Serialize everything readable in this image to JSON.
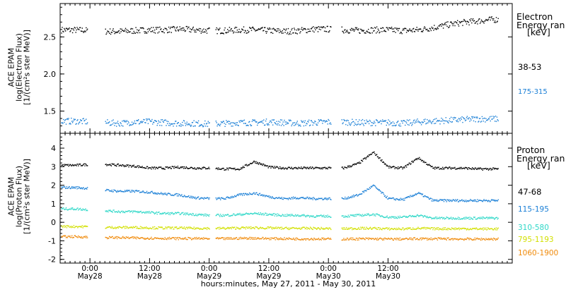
{
  "chart_data": [
    {
      "type": "scatter",
      "panel": "electron",
      "ylabel_lines": [
        "ACE EPAM",
        "log(Electron Flux)",
        "[1/(cm²s ster MeV)]"
      ],
      "ylim": [
        1.2,
        2.95
      ],
      "yticks": [
        1.5,
        2.0,
        2.5
      ],
      "ytick_labels": [
        "1.5",
        "2.0",
        "2.5"
      ],
      "legend_title_lines": [
        "Electron",
        "Energy ran",
        "[keV]"
      ],
      "series": [
        {
          "name": "38-53",
          "color": "#000000",
          "x": [
            0,
            3,
            6,
            9,
            12,
            15,
            18,
            21,
            24,
            27,
            30,
            33,
            36,
            39,
            42,
            45,
            48,
            51,
            54,
            57,
            60,
            63,
            66,
            69,
            72,
            75,
            78,
            81,
            84,
            87
          ],
          "y": [
            2.6,
            2.6,
            2.59,
            2.58,
            2.58,
            2.59,
            2.6,
            2.6,
            2.61,
            2.6,
            2.59,
            2.59,
            2.6,
            2.6,
            2.59,
            2.58,
            2.59,
            2.61,
            2.61,
            2.6,
            2.59,
            2.6,
            2.6,
            2.59,
            2.6,
            2.63,
            2.67,
            2.7,
            2.72,
            2.74
          ]
        },
        {
          "name": "175-315",
          "color": "#1a7fd6",
          "x": [
            0,
            3,
            6,
            9,
            12,
            15,
            18,
            21,
            24,
            27,
            30,
            33,
            36,
            39,
            42,
            45,
            48,
            51,
            54,
            57,
            60,
            63,
            66,
            69,
            72,
            75,
            78,
            81,
            84,
            87
          ],
          "y": [
            1.37,
            1.37,
            1.36,
            1.35,
            1.34,
            1.36,
            1.36,
            1.35,
            1.34,
            1.34,
            1.33,
            1.34,
            1.35,
            1.35,
            1.36,
            1.35,
            1.34,
            1.35,
            1.36,
            1.36,
            1.35,
            1.35,
            1.35,
            1.34,
            1.36,
            1.37,
            1.38,
            1.39,
            1.4,
            1.4
          ]
        }
      ]
    },
    {
      "type": "scatter",
      "panel": "proton",
      "ylabel_lines": [
        "ACE EPAM",
        "log(Proton Flux)",
        "[1/(cm²s ster MeV)]"
      ],
      "ylim": [
        -2.2,
        4.8
      ],
      "yticks": [
        -2,
        -1,
        0,
        1,
        2,
        3,
        4
      ],
      "ytick_labels": [
        "-2",
        "-1",
        "0",
        "1",
        "2",
        "3",
        "4"
      ],
      "legend_title_lines": [
        "Proton",
        "Energy ran",
        "[keV]"
      ],
      "series": [
        {
          "name": "47-68",
          "color": "#000000",
          "x": [
            0,
            3,
            6,
            9,
            12,
            15,
            18,
            21,
            24,
            27,
            30,
            33,
            36,
            39,
            42,
            45,
            48,
            51,
            54,
            57,
            60,
            63,
            66,
            69,
            72,
            75,
            78,
            81,
            84,
            87
          ],
          "y": [
            3.1,
            3.1,
            3.15,
            3.15,
            3.1,
            3.05,
            2.95,
            2.95,
            3.0,
            2.95,
            2.95,
            2.9,
            2.9,
            3.3,
            3.0,
            2.95,
            2.95,
            2.95,
            2.95,
            2.95,
            3.2,
            3.8,
            3.0,
            2.95,
            3.5,
            2.95,
            2.95,
            2.95,
            2.9,
            2.9
          ]
        },
        {
          "name": "115-195",
          "color": "#1a7fd6",
          "x": [
            0,
            3,
            6,
            9,
            12,
            15,
            18,
            21,
            24,
            27,
            30,
            33,
            36,
            39,
            42,
            45,
            48,
            51,
            54,
            57,
            60,
            63,
            66,
            69,
            72,
            75,
            78,
            81,
            84,
            87
          ],
          "y": [
            1.9,
            1.9,
            1.85,
            1.75,
            1.7,
            1.7,
            1.65,
            1.55,
            1.5,
            1.35,
            1.3,
            1.3,
            1.5,
            1.6,
            1.4,
            1.3,
            1.35,
            1.3,
            1.3,
            1.3,
            1.5,
            2.0,
            1.3,
            1.25,
            1.6,
            1.2,
            1.2,
            1.2,
            1.2,
            1.2
          ]
        },
        {
          "name": "310-580",
          "color": "#2fd8c8",
          "x": [
            0,
            3,
            6,
            9,
            12,
            15,
            18,
            21,
            24,
            27,
            30,
            33,
            36,
            39,
            42,
            45,
            48,
            51,
            54,
            57,
            60,
            63,
            66,
            69,
            72,
            75,
            78,
            81,
            84,
            87
          ],
          "y": [
            0.75,
            0.75,
            0.7,
            0.65,
            0.6,
            0.6,
            0.55,
            0.5,
            0.5,
            0.45,
            0.4,
            0.4,
            0.45,
            0.5,
            0.45,
            0.4,
            0.4,
            0.35,
            0.35,
            0.35,
            0.4,
            0.45,
            0.3,
            0.3,
            0.4,
            0.25,
            0.25,
            0.25,
            0.25,
            0.25
          ]
        },
        {
          "name": "795-1193",
          "color": "#d2e000",
          "x": [
            0,
            3,
            6,
            9,
            12,
            15,
            18,
            21,
            24,
            27,
            30,
            33,
            36,
            39,
            42,
            45,
            48,
            51,
            54,
            57,
            60,
            63,
            66,
            69,
            72,
            75,
            78,
            81,
            84,
            87
          ],
          "y": [
            -0.2,
            -0.2,
            -0.22,
            -0.25,
            -0.25,
            -0.25,
            -0.27,
            -0.28,
            -0.28,
            -0.3,
            -0.3,
            -0.3,
            -0.28,
            -0.27,
            -0.28,
            -0.3,
            -0.3,
            -0.3,
            -0.32,
            -0.32,
            -0.3,
            -0.3,
            -0.33,
            -0.33,
            -0.3,
            -0.32,
            -0.32,
            -0.32,
            -0.33,
            -0.33
          ]
        },
        {
          "name": "1060-1900",
          "color": "#f08a0a",
          "x": [
            0,
            3,
            6,
            9,
            12,
            15,
            18,
            21,
            24,
            27,
            30,
            33,
            36,
            39,
            42,
            45,
            48,
            51,
            54,
            57,
            60,
            63,
            66,
            69,
            72,
            75,
            78,
            81,
            84,
            87
          ],
          "y": [
            -0.75,
            -0.75,
            -0.78,
            -0.8,
            -0.8,
            -0.82,
            -0.83,
            -0.84,
            -0.85,
            -0.85,
            -0.86,
            -0.86,
            -0.84,
            -0.83,
            -0.85,
            -0.86,
            -0.87,
            -0.87,
            -0.88,
            -0.88,
            -0.87,
            -0.87,
            -0.88,
            -0.88,
            -0.86,
            -0.87,
            -0.87,
            -0.88,
            -0.88,
            -0.88
          ]
        }
      ]
    }
  ],
  "time_axis": {
    "unit": "hours since May 27, 2011 18:00",
    "xlim": [
      0,
      91
    ],
    "data_gaps": [
      [
        5.5,
        9.0
      ],
      [
        30.0,
        31.2
      ],
      [
        54.5,
        56.5
      ]
    ],
    "major_ticks": [
      {
        "x": 6,
        "time": "0:00",
        "date": "May28"
      },
      {
        "x": 18,
        "time": "12:00",
        "date": "May28"
      },
      {
        "x": 30,
        "time": "0:00",
        "date": "May29"
      },
      {
        "x": 42,
        "time": "12:00",
        "date": "May29"
      },
      {
        "x": 54,
        "time": "0:00",
        "date": "May30"
      },
      {
        "x": 66,
        "time": "12:00",
        "date": "May30"
      }
    ],
    "minor_tick_step": 1,
    "xlabel": "hours:minutes, May 27, 2011 - May 30, 2011"
  },
  "labels": {
    "electron_title_1": "Electron",
    "electron_title_2": "Energy ran",
    "electron_unit": "[keV]",
    "proton_title_1": "Proton",
    "proton_title_2": "Energy ran",
    "proton_unit": "[keV]",
    "e_ch1": "38-53",
    "e_ch2": "175-315",
    "p_ch1": "47-68",
    "p_ch2": "115-195",
    "p_ch3": "310-580",
    "p_ch4": "795-1193",
    "p_ch5": "1060-1900",
    "e_ylab_1": "ACE EPAM",
    "e_ylab_2": "log(Electron Flux)",
    "e_ylab_3": "[1/(cm²s ster MeV)]",
    "p_ylab_1": "ACE EPAM",
    "p_ylab_2": "log(Proton Flux)",
    "p_ylab_3": "[1/(cm²s ster MeV)]",
    "xlabel": "hours:minutes, May 27, 2011 - May 30, 2011"
  }
}
